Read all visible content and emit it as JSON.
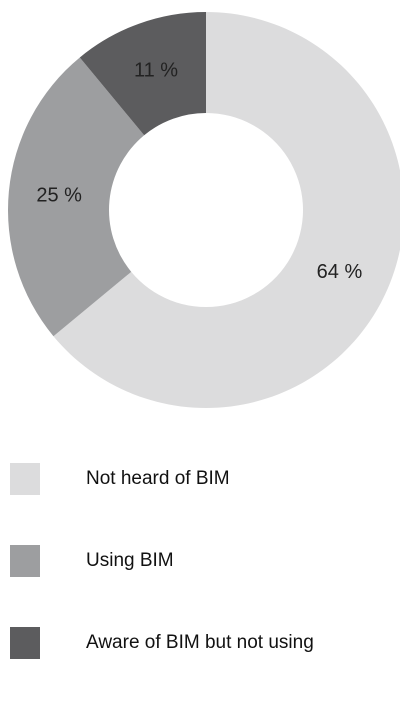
{
  "chart_data": {
    "type": "pie",
    "donut": true,
    "categories": [
      "Not heard of BIM",
      "Using BIM",
      "Aware of BIM but not using"
    ],
    "values": [
      64,
      25,
      11
    ],
    "labels": [
      "64 %",
      "25 %",
      "11 %"
    ],
    "colors": [
      "#dcdcdd",
      "#9d9ea0",
      "#5c5c5e"
    ],
    "legend_position": "bottom"
  }
}
